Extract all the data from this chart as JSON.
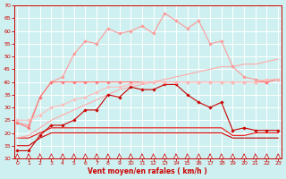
{
  "x": [
    0,
    1,
    2,
    3,
    4,
    5,
    6,
    7,
    8,
    9,
    10,
    11,
    12,
    13,
    14,
    15,
    16,
    17,
    18,
    19,
    20,
    21,
    22,
    23
  ],
  "series": [
    {
      "name": "light_pink_rafales",
      "color": "#ff9999",
      "linewidth": 0.8,
      "marker": "D",
      "markersize": 1.8,
      "y": [
        24,
        23,
        34,
        40,
        42,
        51,
        56,
        55,
        61,
        59,
        60,
        62,
        59,
        67,
        64,
        61,
        64,
        55,
        56,
        46,
        42,
        41,
        40,
        41
      ]
    },
    {
      "name": "medium_pink_flat",
      "color": "#ff7777",
      "linewidth": 0.8,
      "marker": "D",
      "markersize": 1.8,
      "y": [
        24,
        22,
        34,
        40,
        40,
        40,
        40,
        40,
        40,
        40,
        40,
        40,
        40,
        40,
        40,
        40,
        40,
        40,
        40,
        40,
        40,
        40,
        40,
        41
      ]
    },
    {
      "name": "dark_red_main",
      "color": "#cc0000",
      "linewidth": 0.8,
      "marker": "D",
      "markersize": 1.8,
      "y": [
        13,
        13,
        19,
        23,
        23,
        25,
        29,
        29,
        35,
        34,
        38,
        37,
        37,
        39,
        39,
        35,
        32,
        30,
        32,
        21,
        22,
        21,
        21,
        21
      ]
    },
    {
      "name": "red_flat_upper",
      "color": "#ee1111",
      "linewidth": 0.8,
      "marker": null,
      "markersize": 0,
      "y": [
        18,
        18,
        20,
        22,
        22,
        22,
        22,
        22,
        22,
        22,
        22,
        22,
        22,
        22,
        22,
        22,
        22,
        22,
        22,
        19,
        19,
        20,
        20,
        20
      ]
    },
    {
      "name": "red_flat_lower",
      "color": "#cc0000",
      "linewidth": 0.8,
      "marker": null,
      "markersize": 0,
      "y": [
        15,
        15,
        18,
        20,
        20,
        20,
        20,
        20,
        20,
        20,
        20,
        20,
        20,
        20,
        20,
        20,
        20,
        20,
        20,
        18,
        18,
        18,
        18,
        18
      ]
    },
    {
      "name": "diagonal_rising",
      "color": "#ffbbbb",
      "linewidth": 0.8,
      "marker": "D",
      "markersize": 1.8,
      "y": [
        25,
        25,
        27,
        30,
        31,
        33,
        34,
        36,
        38,
        38,
        39,
        40,
        40,
        40,
        40,
        40,
        40,
        40,
        40,
        40,
        40,
        40,
        41,
        41
      ]
    },
    {
      "name": "diagonal_line_no_marker",
      "color": "#ffaaaa",
      "linewidth": 0.8,
      "marker": null,
      "markersize": 0,
      "y": [
        18,
        19,
        22,
        25,
        27,
        29,
        31,
        33,
        35,
        37,
        38,
        39,
        40,
        41,
        42,
        43,
        44,
        45,
        46,
        46,
        47,
        47,
        48,
        49
      ]
    }
  ],
  "xlabel": "Vent moyen/en rafales ( km/h )",
  "xlim": [
    -0.3,
    23.3
  ],
  "ylim": [
    10,
    70
  ],
  "yticks": [
    10,
    15,
    20,
    25,
    30,
    35,
    40,
    45,
    50,
    55,
    60,
    65,
    70
  ],
  "xticks": [
    0,
    1,
    2,
    3,
    4,
    5,
    6,
    7,
    8,
    9,
    10,
    11,
    12,
    13,
    14,
    15,
    16,
    17,
    18,
    19,
    20,
    21,
    22,
    23
  ],
  "bg_color": "#cff0f0",
  "grid_color": "#ffffff",
  "tick_color": "#cc0000",
  "label_color": "#cc0000"
}
